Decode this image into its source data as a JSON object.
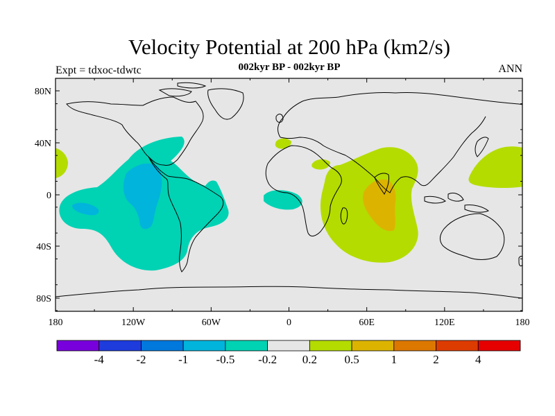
{
  "header": {
    "title": "Velocity Potential at 200 hPa (km2/s)",
    "subtitle": "002kyr BP - 002kyr BP",
    "experiment": "Expt = tdxoc-tdwtc",
    "season": "ANN"
  },
  "map": {
    "projection": "cylindrical-equidistant",
    "lon_range": [
      -180,
      180
    ],
    "lat_range": [
      -90,
      90
    ],
    "lat_tick_labels": [
      "80N",
      "40N",
      "0",
      "40S",
      "80S"
    ],
    "lon_tick_labels": [
      "180",
      "120W",
      "60W",
      "0",
      "60E",
      "120E",
      "180"
    ],
    "background_color": "#e6e6e6",
    "anomaly_regions": [
      {
        "name": "east-pacific-americas-negative",
        "level": "-0.5 to -0.2",
        "color": "#00d2b4"
      },
      {
        "name": "east-pacific-core",
        "level": "-1 to -0.5",
        "color": "#00b4dc"
      },
      {
        "name": "south-pacific-core",
        "level": "-1 to -0.5",
        "color": "#00b4dc"
      },
      {
        "name": "west-africa-atlantic-negative",
        "level": "-0.5 to -0.2",
        "color": "#00d2b4"
      },
      {
        "name": "indian-ocean-positive",
        "level": "0.2 to 0.5",
        "color": "#b4dc00"
      },
      {
        "name": "indian-ocean-core",
        "level": "0.5 to 1",
        "color": "#dcb400"
      },
      {
        "name": "west-pacific-positive",
        "level": "0.2 to 0.5",
        "color": "#b4dc00"
      },
      {
        "name": "dateline-positive",
        "level": "0.2 to 0.5",
        "color": "#b4dc00"
      },
      {
        "name": "mediterranean-positive",
        "level": "0.2 to 0.5",
        "color": "#b4dc00"
      }
    ]
  },
  "colorbar": {
    "colors": [
      "#7800dc",
      "#1e3cdc",
      "#0078dc",
      "#00b4dc",
      "#00d2b4",
      "#e6e6e6",
      "#b4dc00",
      "#dcb400",
      "#dc7800",
      "#dc3c00",
      "#e60000"
    ],
    "tick_labels": [
      "-4",
      "-2",
      "-1",
      "-0.5",
      "-0.2",
      "0.2",
      "0.5",
      "1",
      "2",
      "4"
    ]
  }
}
